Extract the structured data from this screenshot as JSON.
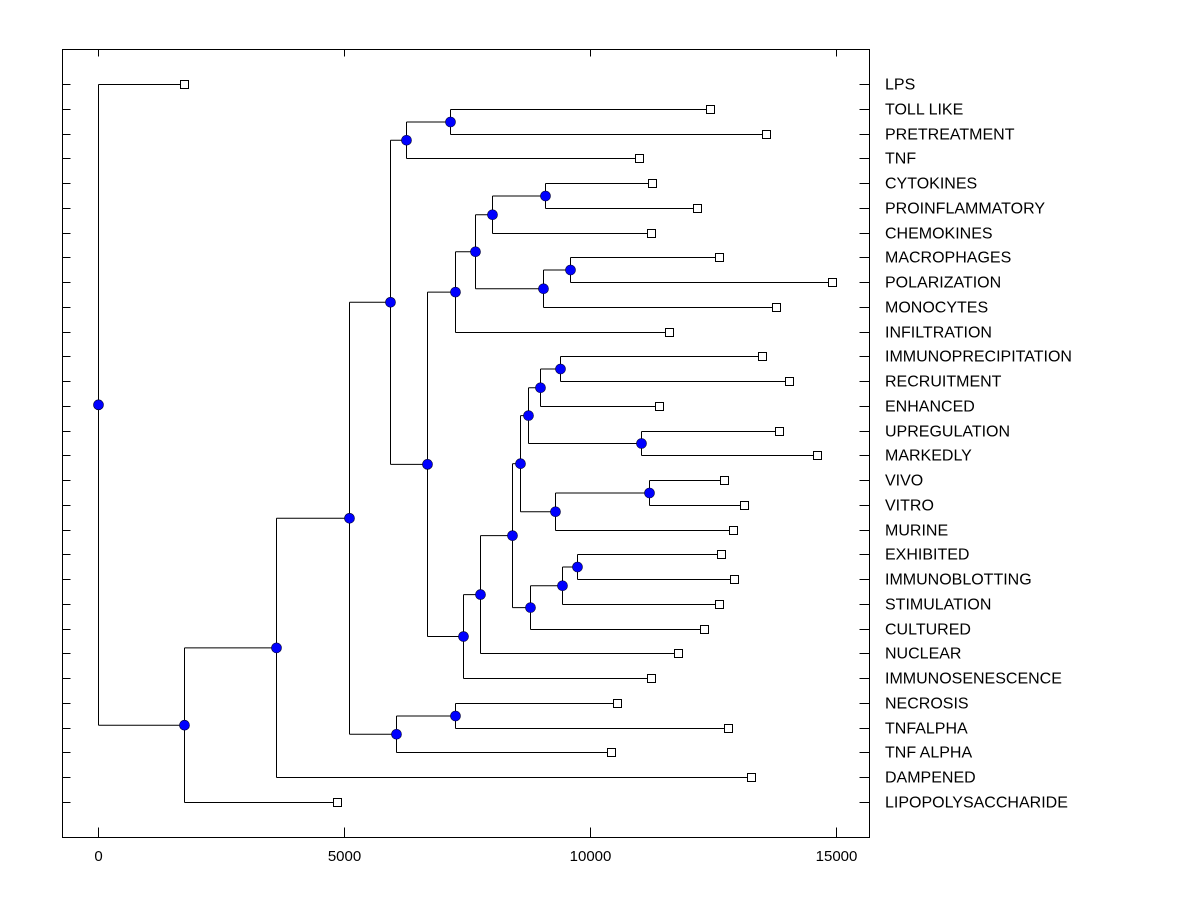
{
  "chart_data": {
    "type": "dendrogram",
    "title": "",
    "xlabel": "",
    "ylabel": "",
    "xlim": [
      -700,
      15700
    ],
    "x_ticks": [
      0,
      5000,
      10000,
      15000
    ],
    "x_tick_labels": [
      "0",
      "5000",
      "10000",
      "15000"
    ],
    "grid": false,
    "legend": "none",
    "colors": {
      "internal_node": "#0000ff",
      "leaf_node": "#ffffff",
      "line": "#000000"
    },
    "leaves": [
      {
        "label": "LPS",
        "x": 1748
      },
      {
        "label": "TOLL LIKE",
        "x": 12440
      },
      {
        "label": "PRETREATMENT",
        "x": 13577
      },
      {
        "label": "TNF",
        "x": 10996
      },
      {
        "label": "CYTOKINES",
        "x": 11260
      },
      {
        "label": "PROINFLAMMATORY",
        "x": 12175
      },
      {
        "label": "CHEMOKINES",
        "x": 11240
      },
      {
        "label": "MACROPHAGES",
        "x": 12622
      },
      {
        "label": "POLARIZATION",
        "x": 14919
      },
      {
        "label": "MONOCYTES",
        "x": 13780
      },
      {
        "label": "INFILTRATION",
        "x": 11606
      },
      {
        "label": "IMMUNOPRECIPITATION",
        "x": 13496
      },
      {
        "label": "RECRUITMENT",
        "x": 14045
      },
      {
        "label": "ENHANCED",
        "x": 11402
      },
      {
        "label": "UPREGULATION",
        "x": 13841
      },
      {
        "label": "MARKEDLY",
        "x": 14614
      },
      {
        "label": "VIVO",
        "x": 12724
      },
      {
        "label": "VITRO",
        "x": 13130
      },
      {
        "label": "MURINE",
        "x": 12907
      },
      {
        "label": "EXHIBITED",
        "x": 12663
      },
      {
        "label": "IMMUNOBLOTTING",
        "x": 12927
      },
      {
        "label": "STIMULATION",
        "x": 12622
      },
      {
        "label": "CULTURED",
        "x": 12317
      },
      {
        "label": "NUCLEAR",
        "x": 11789
      },
      {
        "label": "IMMUNOSENESCENCE",
        "x": 11240
      },
      {
        "label": "NECROSIS",
        "x": 10549
      },
      {
        "label": "TNFALPHA",
        "x": 12805
      },
      {
        "label": "TNF ALPHA",
        "x": 10427
      },
      {
        "label": "DAMPENED",
        "x": 13272
      },
      {
        "label": "LIPOPOLYSACCHARIDE",
        "x": 4858
      }
    ],
    "tree": {
      "x": 0,
      "children": [
        {
          "leaf": 0
        },
        {
          "x": 1748,
          "children": [
            {
              "x": 3618,
              "children": [
                {
                  "x": 5102,
                  "children": [
                    {
                      "x": 5935,
                      "children": [
                        {
                          "x": 6260,
                          "children": [
                            {
                              "x": 7154,
                              "children": [
                                {
                                  "leaf": 1
                                },
                                {
                                  "leaf": 2
                                }
                              ]
                            },
                            {
                              "leaf": 3
                            }
                          ]
                        },
                        {
                          "x": 6687,
                          "children": [
                            {
                              "x": 7256,
                              "children": [
                                {
                                  "x": 7663,
                                  "children": [
                                    {
                                      "x": 8008,
                                      "children": [
                                        {
                                          "x": 9085,
                                          "children": [
                                            {
                                              "leaf": 4
                                            },
                                            {
                                              "leaf": 5
                                            }
                                          ]
                                        },
                                        {
                                          "leaf": 6
                                        }
                                      ]
                                    },
                                    {
                                      "x": 9045,
                                      "children": [
                                        {
                                          "x": 9593,
                                          "children": [
                                            {
                                              "leaf": 7
                                            },
                                            {
                                              "leaf": 8
                                            }
                                          ]
                                        },
                                        {
                                          "leaf": 9
                                        }
                                      ]
                                    }
                                  ]
                                },
                                {
                                  "leaf": 10
                                }
                              ]
                            },
                            {
                              "x": 7419,
                              "children": [
                                {
                                  "x": 7764,
                                  "children": [
                                    {
                                      "x": 8415,
                                      "children": [
                                        {
                                          "x": 8577,
                                          "children": [
                                            {
                                              "x": 8740,
                                              "children": [
                                                {
                                                  "x": 8984,
                                                  "children": [
                                                    {
                                                      "x": 9390,
                                                      "children": [
                                                        {
                                                          "leaf": 11
                                                        },
                                                        {
                                                          "leaf": 12
                                                        }
                                                      ]
                                                    },
                                                    {
                                                      "leaf": 13
                                                    }
                                                  ]
                                                },
                                                {
                                                  "x": 11037,
                                                  "children": [
                                                    {
                                                      "leaf": 14
                                                    },
                                                    {
                                                      "leaf": 15
                                                    }
                                                  ]
                                                }
                                              ]
                                            },
                                            {
                                              "x": 9289,
                                              "children": [
                                                {
                                                  "x": 11199,
                                                  "children": [
                                                    {
                                                      "leaf": 16
                                                    },
                                                    {
                                                      "leaf": 17
                                                    }
                                                  ]
                                                },
                                                {
                                                  "leaf": 18
                                                }
                                              ]
                                            }
                                          ]
                                        },
                                        {
                                          "x": 8780,
                                          "children": [
                                            {
                                              "x": 9431,
                                              "children": [
                                                {
                                                  "x": 9736,
                                                  "children": [
                                                    {
                                                      "leaf": 19
                                                    },
                                                    {
                                                      "leaf": 20
                                                    }
                                                  ]
                                                },
                                                {
                                                  "leaf": 21
                                                }
                                              ]
                                            },
                                            {
                                              "leaf": 22
                                            }
                                          ]
                                        }
                                      ]
                                    },
                                    {
                                      "leaf": 23
                                    }
                                  ]
                                },
                                {
                                  "leaf": 24
                                }
                              ]
                            }
                          ]
                        }
                      ]
                    },
                    {
                      "x": 6057,
                      "children": [
                        {
                          "x": 7256,
                          "children": [
                            {
                              "leaf": 25
                            },
                            {
                              "leaf": 26
                            }
                          ]
                        },
                        {
                          "leaf": 27
                        }
                      ]
                    }
                  ]
                },
                {
                  "leaf": 28
                }
              ]
            },
            {
              "leaf": 29
            }
          ]
        }
      ]
    }
  }
}
